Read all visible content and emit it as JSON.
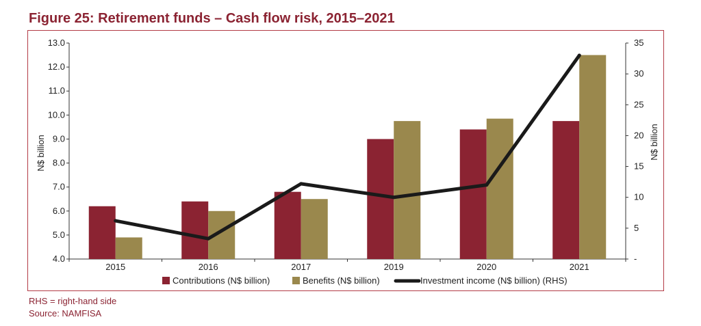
{
  "title": "Figure 25: Retirement funds – Cash flow risk, 2015–2021",
  "notes": {
    "rhs": "RHS = right-hand side",
    "source": "Source: NAMFISA"
  },
  "colors": {
    "contributions": "#8b2332",
    "benefits": "#9a884d",
    "investment": "#1a1a1a",
    "title": "#8b2332",
    "frame": "#b33a45"
  },
  "chart_data": {
    "type": "bar",
    "categories": [
      "2015",
      "2016",
      "2017",
      "2019",
      "2020",
      "2021"
    ],
    "series": [
      {
        "name": "Contributions (N$ billion)",
        "type": "bar",
        "axis": "left",
        "values": [
          6.2,
          6.4,
          6.8,
          9.0,
          9.4,
          9.75
        ]
      },
      {
        "name": "Benefits (N$ billion)",
        "type": "bar",
        "axis": "left",
        "values": [
          4.9,
          6.0,
          6.5,
          9.75,
          9.85,
          12.5
        ]
      },
      {
        "name": "Investment income (N$ billion) (RHS)",
        "type": "line",
        "axis": "right",
        "values": [
          6.2,
          3.3,
          12.2,
          10.0,
          12.0,
          33.0
        ]
      }
    ],
    "ylabel": "N$ billion",
    "y2label": "N$ billion",
    "ylim": [
      4.0,
      13.0
    ],
    "y2lim": [
      0,
      35
    ],
    "yticks": [
      "4.0",
      "5.0",
      "6.0",
      "7.0",
      "8.0",
      "9.0",
      "10.0",
      "11.0",
      "12.0",
      "13.0"
    ],
    "y2ticks": [
      "-",
      "5",
      "10",
      "15",
      "20",
      "25",
      "30",
      "35"
    ],
    "grid": false,
    "legend_position": "bottom"
  }
}
